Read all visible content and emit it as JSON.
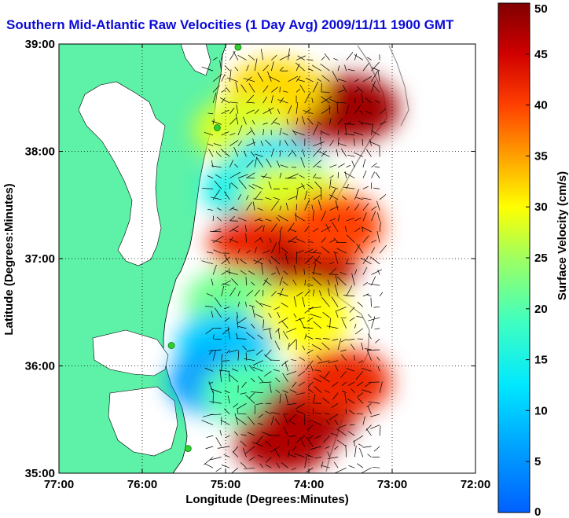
{
  "chart_data": {
    "type": "heatmap",
    "title": "Southern Mid-Atlantic Raw Velocities (1 Day Avg) 2009/11/11 1900 GMT",
    "xlabel": "Longitude (Degrees:Minutes)",
    "ylabel": "Latitude (Degrees:Minutes)",
    "xlim": [
      -77,
      -72
    ],
    "ylim": [
      35,
      39
    ],
    "x_ticks": [
      {
        "value": -77,
        "label": "77:00"
      },
      {
        "value": -76,
        "label": "76:00"
      },
      {
        "value": -75,
        "label": "75:00"
      },
      {
        "value": -74,
        "label": "74:00"
      },
      {
        "value": -73,
        "label": "73:00"
      },
      {
        "value": -72,
        "label": "72:00"
      }
    ],
    "y_ticks": [
      {
        "value": 35,
        "label": "35:00"
      },
      {
        "value": 36,
        "label": "36:00"
      },
      {
        "value": 37,
        "label": "37:00"
      },
      {
        "value": 38,
        "label": "38:00"
      },
      {
        "value": 39,
        "label": "39:00"
      }
    ],
    "grid": "dotted",
    "colorbar": {
      "label": "Surface Velocity (cm/s)",
      "min": 0,
      "max": 50,
      "ticks": [
        0,
        5,
        10,
        15,
        20,
        25,
        30,
        35,
        40,
        45,
        50
      ],
      "colormap": "jet",
      "placement": "right"
    },
    "field_regions": [
      {
        "lon": -74.0,
        "lat": 38.35,
        "speed": 45
      },
      {
        "lon": -73.5,
        "lat": 38.4,
        "speed": 48
      },
      {
        "lon": -74.4,
        "lat": 38.55,
        "speed": 32
      },
      {
        "lon": -74.8,
        "lat": 38.2,
        "speed": 28
      },
      {
        "lon": -74.4,
        "lat": 37.85,
        "speed": 12
      },
      {
        "lon": -74.7,
        "lat": 37.65,
        "speed": 15
      },
      {
        "lon": -74.2,
        "lat": 37.6,
        "speed": 28
      },
      {
        "lon": -74.6,
        "lat": 37.15,
        "speed": 42
      },
      {
        "lon": -74.0,
        "lat": 36.95,
        "speed": 47
      },
      {
        "lon": -73.7,
        "lat": 37.3,
        "speed": 40
      },
      {
        "lon": -74.9,
        "lat": 36.6,
        "speed": 22
      },
      {
        "lon": -74.1,
        "lat": 36.45,
        "speed": 30
      },
      {
        "lon": -75.0,
        "lat": 36.2,
        "speed": 10
      },
      {
        "lon": -75.1,
        "lat": 35.85,
        "speed": 6
      },
      {
        "lon": -74.7,
        "lat": 35.75,
        "speed": 20
      },
      {
        "lon": -74.0,
        "lat": 35.55,
        "speed": 48
      },
      {
        "lon": -74.3,
        "lat": 35.3,
        "speed": 47
      },
      {
        "lon": -73.6,
        "lat": 35.85,
        "speed": 42
      }
    ],
    "stations": [
      {
        "lon": -74.85,
        "lat": 38.97
      },
      {
        "lon": -75.1,
        "lat": 38.22
      },
      {
        "lon": -75.65,
        "lat": 36.19
      },
      {
        "lon": -75.45,
        "lat": 35.23
      }
    ]
  },
  "colors": {
    "land": "#5df2a8",
    "title": "#0b0bd6",
    "station": "#2fd02f"
  }
}
